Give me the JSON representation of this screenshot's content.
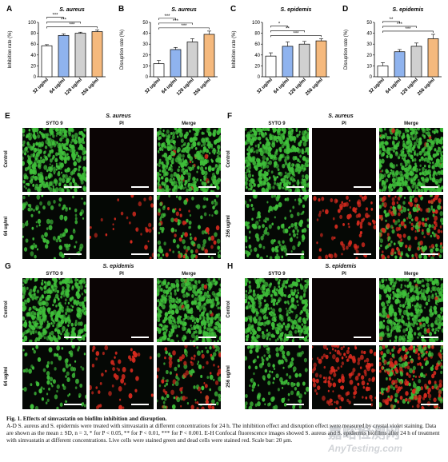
{
  "chart_data": [
    {
      "letter": "A",
      "type": "bar",
      "title": "S. aureus",
      "ylabel": "Inhibition rate (%)",
      "ylim": [
        0,
        100
      ],
      "yticks": [
        0,
        20,
        40,
        60,
        80,
        100
      ],
      "categories": [
        "32 ug/ml",
        "64 ug/ml",
        "128 ug/ml",
        "256 ug/ml"
      ],
      "values": [
        57,
        76,
        80,
        83
      ],
      "errors": [
        2,
        3,
        2,
        3
      ],
      "colors": [
        "#ffffff",
        "#8fb3ee",
        "#d0d0d0",
        "#f5b97d"
      ],
      "sig": [
        [
          "0",
          "1",
          "***"
        ],
        [
          "0",
          "2",
          "***"
        ],
        [
          "0",
          "3",
          "***"
        ]
      ]
    },
    {
      "letter": "B",
      "type": "bar",
      "title": "S. aureus",
      "ylabel": "Disruption rate (%)",
      "ylim": [
        0,
        50
      ],
      "yticks": [
        0,
        10,
        20,
        30,
        40,
        50
      ],
      "categories": [
        "32 ug/ml",
        "64 ug/ml",
        "128 ug/ml",
        "256 ug/ml"
      ],
      "values": [
        12,
        25,
        32,
        39
      ],
      "errors": [
        3,
        2,
        3,
        3
      ],
      "colors": [
        "#ffffff",
        "#8fb3ee",
        "#d0d0d0",
        "#f5b97d"
      ],
      "sig": [
        [
          "0",
          "1",
          "***"
        ],
        [
          "0",
          "2",
          "***"
        ],
        [
          "0",
          "3",
          "***"
        ]
      ]
    },
    {
      "letter": "C",
      "type": "bar",
      "title": "S. epidemis",
      "ylabel": "Inhibition rate (%)",
      "ylim": [
        0,
        100
      ],
      "yticks": [
        0,
        20,
        40,
        60,
        80,
        100
      ],
      "categories": [
        "32 ug/ml",
        "64 ug/ml",
        "128 ug/ml",
        "256 ug/ml"
      ],
      "values": [
        38,
        56,
        60,
        66
      ],
      "errors": [
        6,
        8,
        5,
        4
      ],
      "colors": [
        "#ffffff",
        "#8fb3ee",
        "#d0d0d0",
        "#f5b97d"
      ],
      "sig": [
        [
          "0",
          "1",
          "*"
        ],
        [
          "0",
          "2",
          "**"
        ],
        [
          "0",
          "3",
          "***"
        ]
      ]
    },
    {
      "letter": "D",
      "type": "bar",
      "title": "S. epidemis",
      "ylabel": "Disruption rate (%)",
      "ylim": [
        0,
        50
      ],
      "yticks": [
        0,
        10,
        20,
        30,
        40,
        50
      ],
      "categories": [
        "32 ug/ml",
        "64 ug/ml",
        "128 ug/ml",
        "256 ug/ml"
      ],
      "values": [
        10,
        23,
        28,
        35
      ],
      "errors": [
        3,
        2,
        3,
        4
      ],
      "colors": [
        "#ffffff",
        "#8fb3ee",
        "#d0d0d0",
        "#f5b97d"
      ],
      "sig": [
        [
          "0",
          "1",
          "**"
        ],
        [
          "0",
          "2",
          "***"
        ],
        [
          "0",
          "3",
          "***"
        ]
      ]
    }
  ],
  "micro": [
    {
      "letter": "E",
      "title": "S. aureus",
      "cols": [
        "SYTO 9",
        "PI",
        "Merge"
      ],
      "rows": [
        "Control",
        "64 ug/ml"
      ]
    },
    {
      "letter": "F",
      "title": "S. aureus",
      "cols": [
        "SYTO 9",
        "PI",
        "Merge"
      ],
      "rows": [
        "Control",
        "256 ug/ml"
      ]
    },
    {
      "letter": "G",
      "title": "S. epidemis",
      "cols": [
        "SYTO 9",
        "PI",
        "Merge"
      ],
      "rows": [
        "Control",
        "64 ug/ml"
      ]
    },
    {
      "letter": "H",
      "title": "S. epidemis",
      "cols": [
        "SYTO 9",
        "PI",
        "Merge"
      ],
      "rows": [
        "Control",
        "256 ug/ml"
      ]
    }
  ],
  "caption": {
    "title": "Fig. 1.  Effects of simvastatin on biofilm inhibition and disruption.",
    "body": "A-D S. aureus and S. epidermis were treated with simvastatin at different concentrations for 24 h. The inhibition effect and disruption effect were measured by crystal violet staining. Data are shown as the mean ± SD, n = 3, * for P < 0.05, ** for P < 0.01, *** for P < 0.001. E-H Confocal fluorescence images showed S. aureus and S. epidermis biofilms after 24 h of treatment with simvastatin at different concentrations. Live cells were stained green and dead cells were stained red. Scale bar: 20 μm."
  },
  "watermark": {
    "line1": "嘉峪检测网",
    "line2": "AnyTesting.com"
  },
  "colors": {
    "live": "#3fbf3a",
    "dead": "#d62a1e",
    "bg": "#050805"
  }
}
